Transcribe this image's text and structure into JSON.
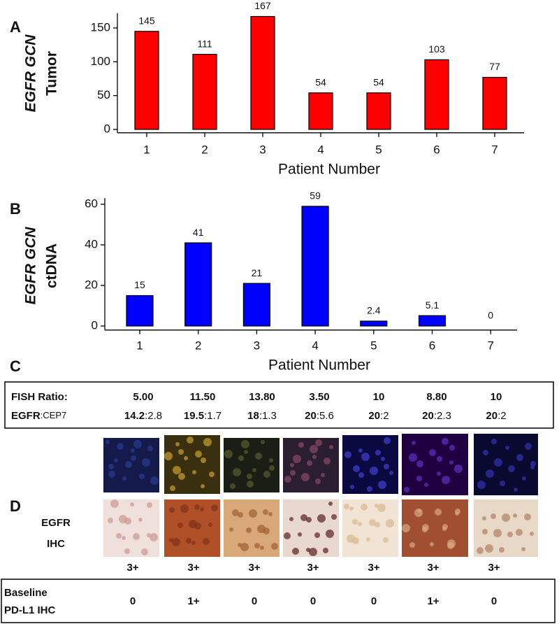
{
  "panel_labels": [
    "A",
    "B",
    "C",
    "D"
  ],
  "chart_data": [
    {
      "type": "bar",
      "ylabel": [
        "EGFR GCN",
        "Tumor"
      ],
      "xlabel": "Patient Number",
      "categories": [
        "1",
        "2",
        "3",
        "4",
        "5",
        "6",
        "7"
      ],
      "values": [
        145,
        111,
        167,
        54,
        54,
        103,
        77
      ],
      "color": "#ff0000",
      "ylim": [
        -5,
        172
      ],
      "yticks": [
        0,
        50,
        100,
        150
      ]
    },
    {
      "type": "bar",
      "ylabel": [
        "EGFR GCN",
        "ctDNA"
      ],
      "xlabel": "Patient Number",
      "categories": [
        "1",
        "2",
        "3",
        "4",
        "5",
        "6",
        "7"
      ],
      "values": [
        15,
        41,
        21,
        59,
        2.4,
        5.1,
        0
      ],
      "color": "#0000ff",
      "ylim": [
        -2,
        63
      ],
      "yticks": [
        0,
        20,
        40,
        60
      ]
    }
  ],
  "fish_table": {
    "ratio_label": "FISH Ratio:",
    "ratios": [
      "5.00",
      "11.50",
      "13.80",
      "3.50",
      "10",
      "8.80",
      "10"
    ],
    "pair_label": {
      "bold": "EGFR",
      "rest": ":CEP7"
    },
    "pairs": [
      {
        "bold": "14.2",
        "rest": ":2.8"
      },
      {
        "bold": "19.5",
        "rest": ":1.7"
      },
      {
        "bold": "18",
        "rest": ":1.3"
      },
      {
        "bold": "20",
        "rest": ":5.6"
      },
      {
        "bold": "20",
        "rest": ":2"
      },
      {
        "bold": "20",
        "rest": ":2.3"
      },
      {
        "bold": "20",
        "rest": ":2"
      }
    ]
  },
  "ihc": {
    "label": [
      "EGFR",
      "IHC"
    ],
    "scores": [
      "3+",
      "3+",
      "3+",
      "3+",
      "3+",
      "3+",
      "3+"
    ]
  },
  "pdl1": {
    "label": [
      "Baseline",
      "PD-L1 IHC"
    ],
    "scores": [
      "0",
      "1+",
      "0",
      "0",
      "0",
      "1+",
      "0"
    ]
  }
}
